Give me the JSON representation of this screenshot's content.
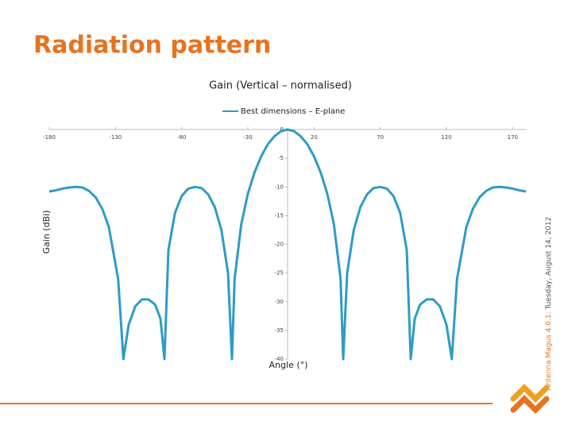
{
  "slide_title": "Radiation pattern",
  "footer": {
    "product": "Antenna Magus 4.0.1:",
    "date": "Tuesday, August 14, 2012"
  },
  "chart_data": {
    "type": "line",
    "title": "Gain (Vertical – normalised)",
    "x_label": "Angle (°)",
    "y_label": "Gain (dBi)",
    "x": [
      -180,
      -175,
      -170,
      -165,
      -160,
      -155,
      -150,
      -145,
      -140,
      -135,
      -128,
      -124,
      -120,
      -115,
      -110,
      -105,
      -100,
      -96,
      -93,
      -90,
      -85,
      -80,
      -75,
      -70,
      -65,
      -60,
      -55,
      -50,
      -45,
      -42,
      -40,
      -35,
      -30,
      -25,
      -20,
      -15,
      -10,
      -5,
      0,
      5,
      10,
      15,
      20,
      25,
      30,
      35,
      40,
      42,
      45,
      50,
      55,
      60,
      65,
      70,
      75,
      80,
      85,
      90,
      93,
      96,
      100,
      105,
      110,
      115,
      120,
      124,
      128,
      135,
      140,
      145,
      150,
      155,
      160,
      165,
      170,
      175,
      180
    ],
    "series": [
      {
        "name": "Best dimensions – E-plane",
        "color": "#2e9bc6",
        "values": [
          -10.8,
          -10.6,
          -10.3,
          -10.1,
          -10,
          -10.1,
          -10.7,
          -11.8,
          -13.8,
          -17,
          -26,
          -40,
          -34,
          -30.8,
          -29.6,
          -29.6,
          -30.5,
          -33,
          -40,
          -21,
          -14.5,
          -11.6,
          -10.3,
          -10,
          -10.2,
          -11.3,
          -13.5,
          -17.5,
          -25,
          -40,
          -26,
          -16.5,
          -11.2,
          -7.5,
          -4.7,
          -2.6,
          -1.2,
          -0.3,
          0,
          -0.3,
          -1.2,
          -2.6,
          -4.7,
          -7.5,
          -11.2,
          -16.5,
          -26,
          -40,
          -25,
          -17.5,
          -13.5,
          -11.3,
          -10.2,
          -10,
          -10.3,
          -11.6,
          -14.5,
          -21,
          -40,
          -33,
          -30.5,
          -29.6,
          -29.6,
          -30.8,
          -34,
          -40,
          -26,
          -17,
          -13.8,
          -11.8,
          -10.7,
          -10.1,
          -10,
          -10.1,
          -10.3,
          -10.6,
          -10.8
        ]
      }
    ],
    "xlim": [
      -180,
      180
    ],
    "xticks": [
      -180,
      -130,
      -80,
      -30,
      20,
      70,
      120,
      170
    ],
    "ylim": [
      -40,
      0
    ],
    "yticks": [
      0,
      -5,
      -10,
      -15,
      -20,
      -25,
      -30,
      -35,
      -40
    ],
    "grid": false,
    "legend": "top"
  }
}
